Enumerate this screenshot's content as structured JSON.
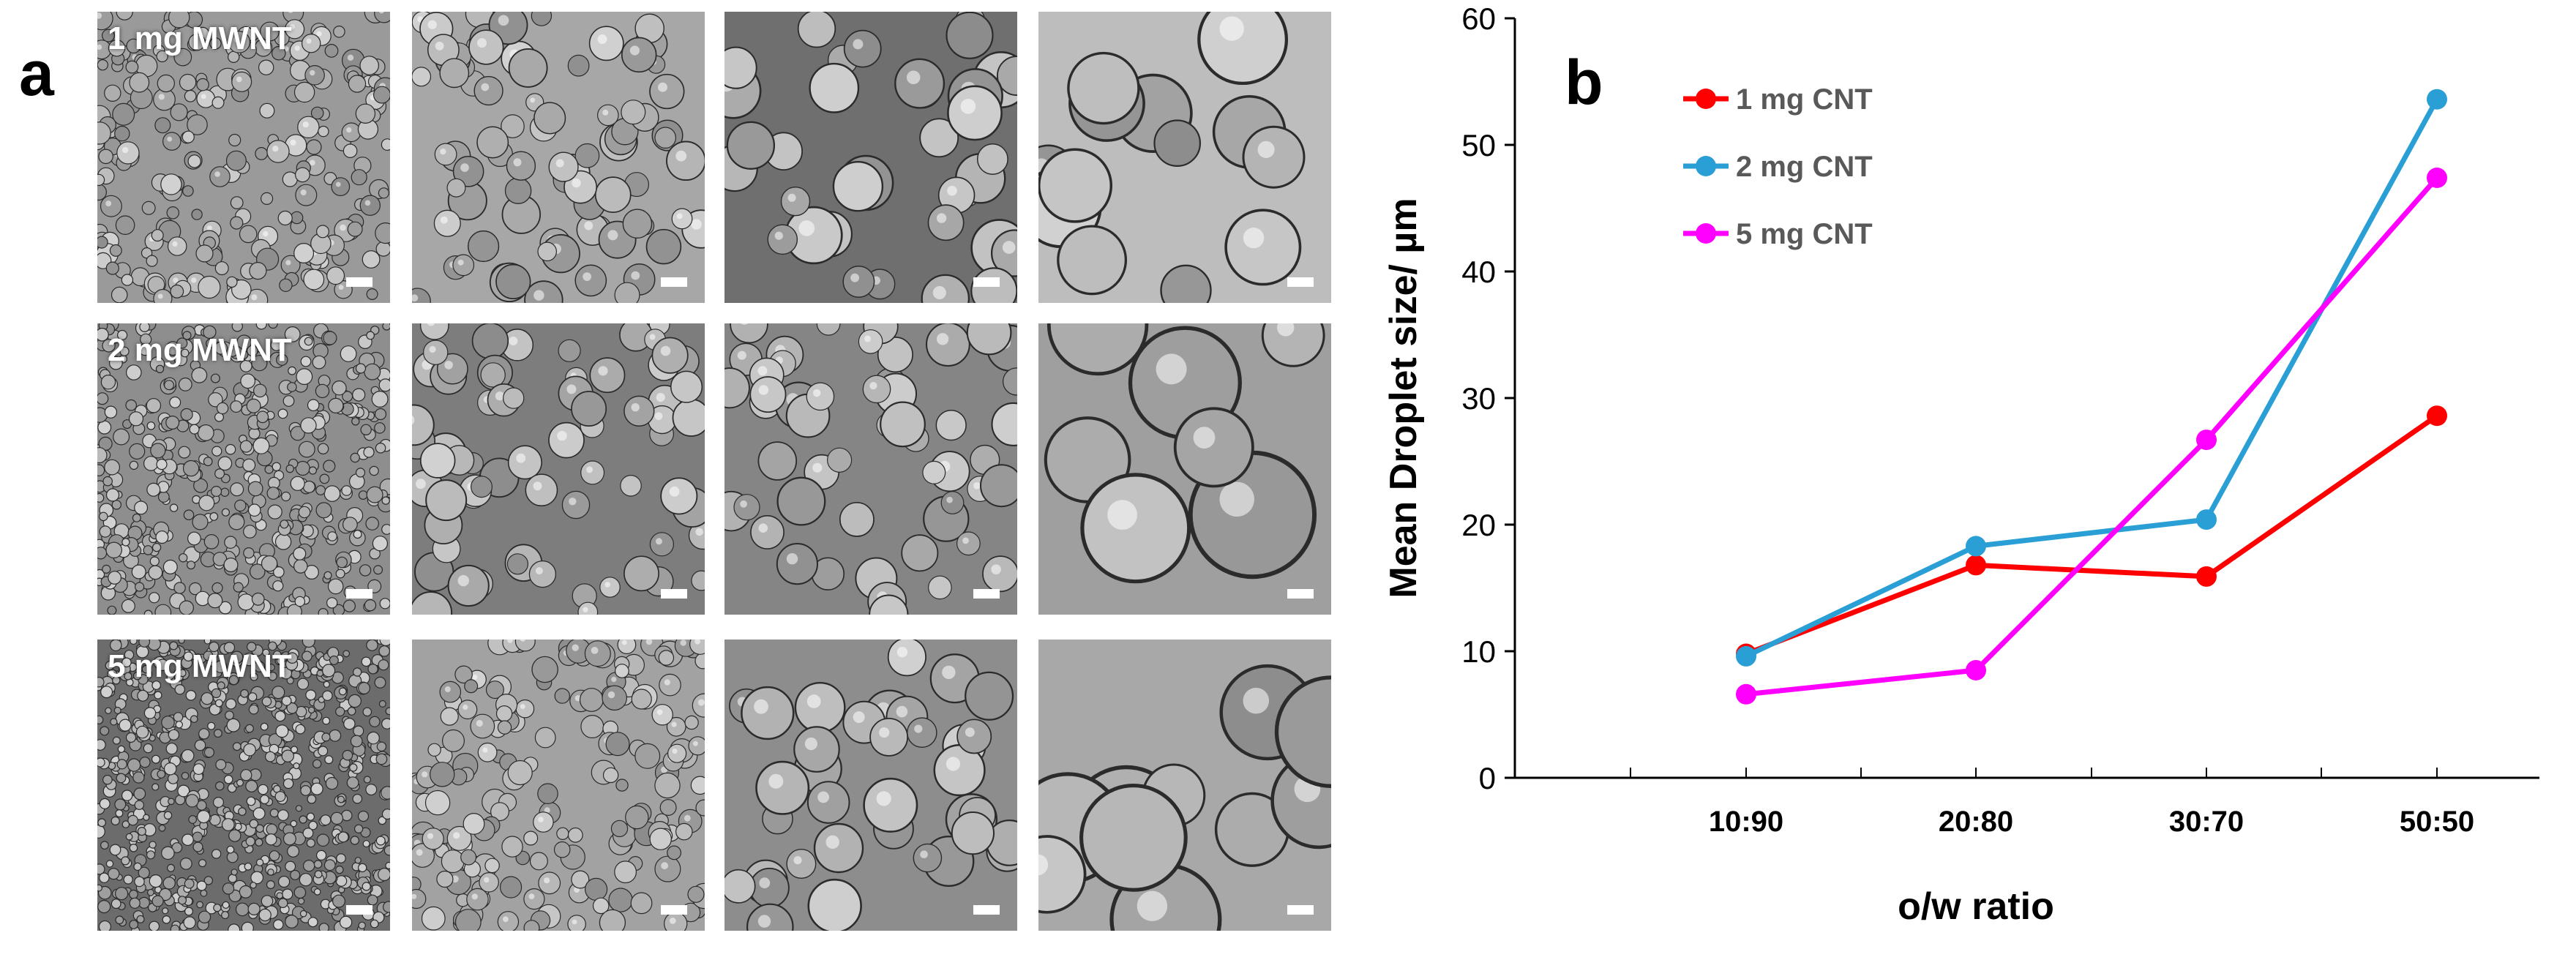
{
  "panel_a": {
    "letter": "a",
    "row_labels": [
      "1 mg MWNT",
      "2 mg MWNT",
      "5 mg MWNT"
    ]
  },
  "panel_b": {
    "letter": "b"
  },
  "chart_data": {
    "type": "line",
    "categories": [
      "10:90",
      "20:80",
      "30:70",
      "50:50"
    ],
    "series": [
      {
        "name": "1 mg CNT",
        "color": "#ff0000",
        "values": [
          9.8,
          16.8,
          15.9,
          28.6
        ]
      },
      {
        "name": "2 mg CNT",
        "color": "#2a9fd6",
        "values": [
          9.6,
          18.3,
          20.4,
          53.6
        ]
      },
      {
        "name": "5 mg CNT",
        "color": "#ff00ff",
        "values": [
          6.6,
          8.5,
          26.7,
          47.4
        ]
      }
    ],
    "xlabel": "o/w ratio",
    "ylabel": "Mean Droplet size/ µm",
    "ylim": [
      0,
      60
    ],
    "yticks": [
      0,
      10,
      20,
      30,
      40,
      50,
      60
    ],
    "legend_position": "top-left",
    "grid": false
  }
}
